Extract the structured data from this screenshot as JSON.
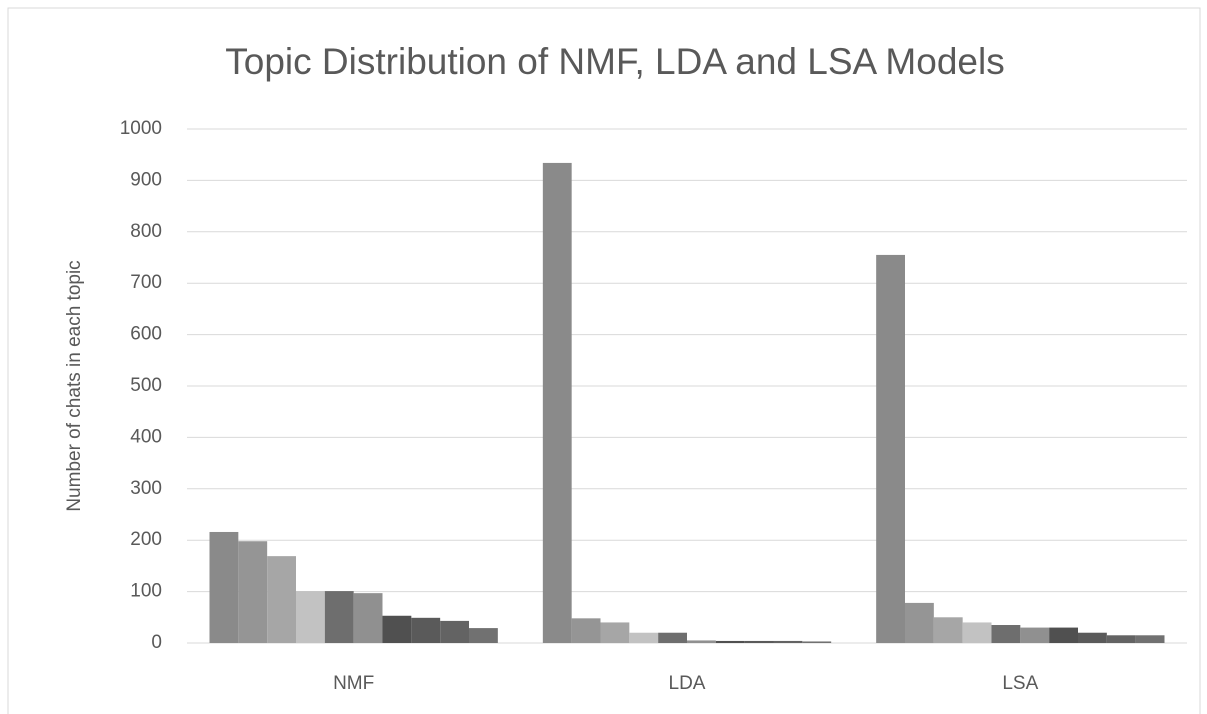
{
  "chart_data": {
    "type": "bar",
    "title": "Topic Distribution of NMF, LDA and LSA Models",
    "y_label": "Number  of chats in each topic",
    "categories": [
      "NMF",
      "LDA",
      "LSA"
    ],
    "series": [
      {
        "color": "#8a8a8a",
        "values": [
          216,
          934,
          755
        ]
      },
      {
        "color": "#959595",
        "values": [
          198,
          48,
          78
        ]
      },
      {
        "color": "#a6a6a6",
        "values": [
          169,
          40,
          50
        ]
      },
      {
        "color": "#c2c2c2",
        "values": [
          101,
          20,
          40
        ]
      },
      {
        "color": "#6e6e6e",
        "values": [
          101,
          20,
          35
        ]
      },
      {
        "color": "#909090",
        "values": [
          97,
          5,
          30
        ]
      },
      {
        "color": "#505050",
        "values": [
          53,
          4,
          30
        ]
      },
      {
        "color": "#5a5a5a",
        "values": [
          49,
          4,
          20
        ]
      },
      {
        "color": "#636363",
        "values": [
          43,
          4,
          15
        ]
      },
      {
        "color": "#717171",
        "values": [
          29,
          3,
          15
        ]
      }
    ],
    "ylim": [
      0,
      1000
    ],
    "yticks": [
      0,
      100,
      200,
      300,
      400,
      500,
      600,
      700,
      800,
      900,
      1000
    ],
    "grid": true
  }
}
